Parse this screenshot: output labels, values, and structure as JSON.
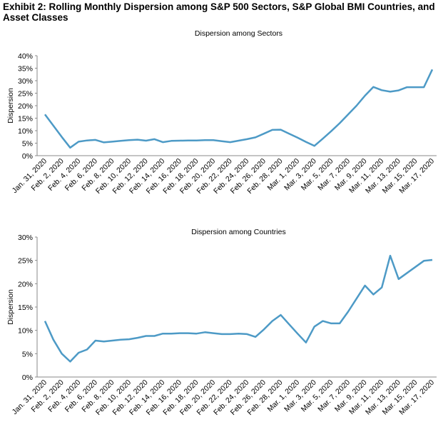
{
  "title": "Exhibit 2: Rolling Monthly Dispersion among S&P 500 Sectors, S&P Global BMI Countries, and Asset Classes",
  "chart_data": [
    {
      "type": "line",
      "title": "Dispersion among Sectors",
      "y_label": "Dispersion",
      "categories": [
        "Jan. 31, 2020",
        null,
        "Feb. 2, 2020",
        null,
        "Feb. 4, 2020",
        null,
        "Feb. 6, 2020",
        null,
        "Feb. 8, 2020",
        null,
        "Feb. 10, 2020",
        null,
        "Feb. 12, 2020",
        null,
        "Feb. 14, 2020",
        null,
        "Feb. 16, 2020",
        null,
        "Feb. 18, 2020",
        null,
        "Feb. 20, 2020",
        null,
        "Feb. 22, 2020",
        null,
        "Feb. 24, 2020",
        null,
        "Feb. 26, 2020",
        null,
        "Feb. 28, 2020",
        null,
        "Mar. 1, 2020",
        null,
        "Mar. 3, 2020",
        null,
        "Mar. 5, 2020",
        null,
        "Mar. 7, 2020",
        null,
        "Mar. 9, 2020",
        null,
        "Mar. 11, 2020",
        null,
        "Mar. 13, 2020",
        null,
        "Mar. 15, 2020",
        null,
        "Mar. 17, 2020"
      ],
      "values": [
        16.5,
        12,
        7.5,
        3.2,
        5.6,
        6.1,
        6.3,
        5.3,
        5.6,
        5.9,
        6.2,
        6.4,
        6,
        6.6,
        5.4,
        5.9,
        6,
        6.1,
        6.1,
        6.2,
        6.2,
        5.8,
        5.4,
        6,
        6.6,
        7.3,
        8.8,
        10.3,
        10.4,
        8.8,
        7.2,
        5.5,
        3.9,
        6.8,
        9.8,
        13,
        16.5,
        20,
        24,
        27.5,
        26.2,
        25.6,
        26.1,
        27.4,
        27.4,
        27.4,
        34.5
      ],
      "color": "#4d9ac6",
      "ylim": [
        0,
        40
      ],
      "yticks": [
        {
          "value": 0,
          "label": "0%"
        },
        {
          "value": 5,
          "label": "5%"
        },
        {
          "value": 10,
          "label": "10%"
        },
        {
          "value": 15,
          "label": "15%"
        },
        {
          "value": 20,
          "label": "20%"
        },
        {
          "value": 25,
          "label": "25%"
        },
        {
          "value": 30,
          "label": "30%"
        },
        {
          "value": 35,
          "label": "35%"
        },
        {
          "value": 40,
          "label": "40%"
        }
      ]
    },
    {
      "type": "line",
      "title": "Dispersion among Countries",
      "y_label": "Dispersion",
      "categories": [
        "Jan. 31, 2020",
        null,
        "Feb. 2, 2020",
        null,
        "Feb. 4, 2020",
        null,
        "Feb. 6, 2020",
        null,
        "Feb. 8, 2020",
        null,
        "Feb. 10, 2020",
        null,
        "Feb. 12, 2020",
        null,
        "Feb. 14, 2020",
        null,
        "Feb. 16, 2020",
        null,
        "Feb. 18, 2020",
        null,
        "Feb. 20, 2020",
        null,
        "Feb. 22, 2020",
        null,
        "Feb. 24, 2020",
        null,
        "Feb. 26, 2020",
        null,
        "Feb. 28, 2020",
        null,
        "Mar. 1, 2020",
        null,
        "Mar. 3, 2020",
        null,
        "Mar. 5, 2020",
        null,
        "Mar. 7, 2020",
        null,
        "Mar. 9, 2020",
        null,
        "Mar. 11, 2020",
        null,
        "Mar. 13, 2020",
        null,
        "Mar. 15, 2020",
        null,
        "Mar. 17, 2020"
      ],
      "values": [
        12,
        8,
        5,
        3.3,
        5.2,
        5.9,
        7.8,
        7.6,
        7.8,
        8,
        8.1,
        8.4,
        8.8,
        8.8,
        9.3,
        9.3,
        9.4,
        9.4,
        9.3,
        9.6,
        9.4,
        9.2,
        9.2,
        9.3,
        9.2,
        8.6,
        10.2,
        12,
        13.3,
        11.3,
        9.3,
        7.4,
        10.8,
        12,
        11.5,
        11.5,
        14,
        16.8,
        19.6,
        17.7,
        19.2,
        26,
        21,
        22.3,
        23.6,
        24.9,
        25.1
      ],
      "color": "#4d9ac6",
      "ylim": [
        0,
        30
      ],
      "yticks": [
        {
          "value": 0,
          "label": "0%"
        },
        {
          "value": 5,
          "label": "5%"
        },
        {
          "value": 10,
          "label": "10%"
        },
        {
          "value": 15,
          "label": "15%"
        },
        {
          "value": 20,
          "label": "20%"
        },
        {
          "value": 25,
          "label": "25%"
        },
        {
          "value": 30,
          "label": "30%"
        }
      ]
    }
  ]
}
